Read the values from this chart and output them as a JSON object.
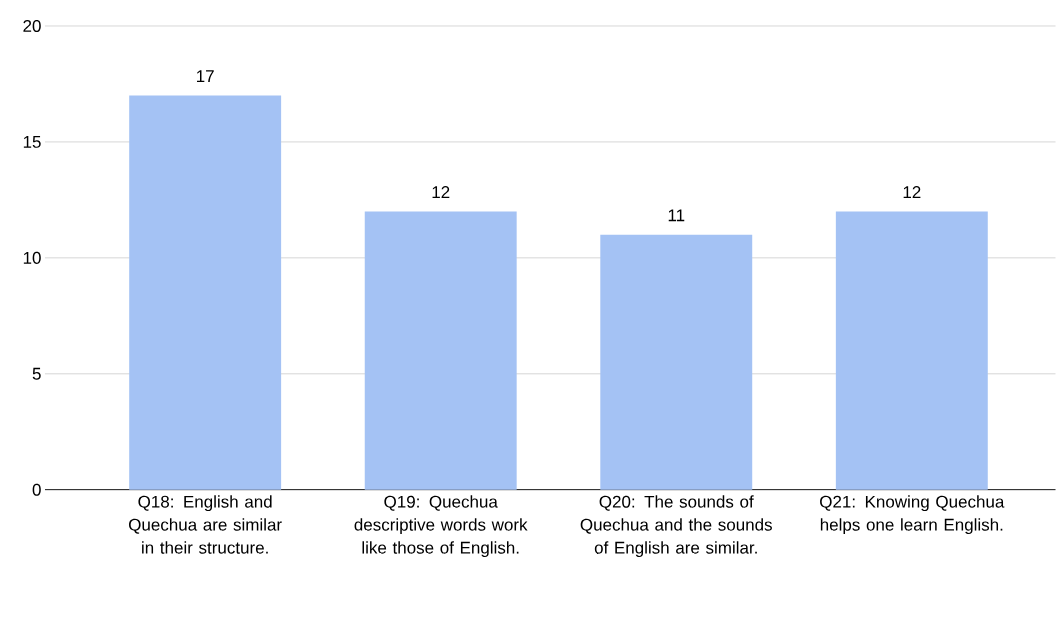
{
  "chart_data": {
    "type": "bar",
    "categories": [
      "Q18: English and Quechua are similar in their structure.",
      "Q19: Quechua descriptive words work like those of English.",
      "Q20: The sounds of Quechua and the sounds of English are similar.",
      "Q21: Knowing Quechua helps one learn English."
    ],
    "values": [
      17,
      12,
      11,
      12
    ],
    "color": "#a4c2f4",
    "ylim": [
      0,
      20
    ],
    "yticks": [
      0,
      5,
      10,
      15,
      20
    ],
    "grid": "y",
    "data_labels": true
  }
}
